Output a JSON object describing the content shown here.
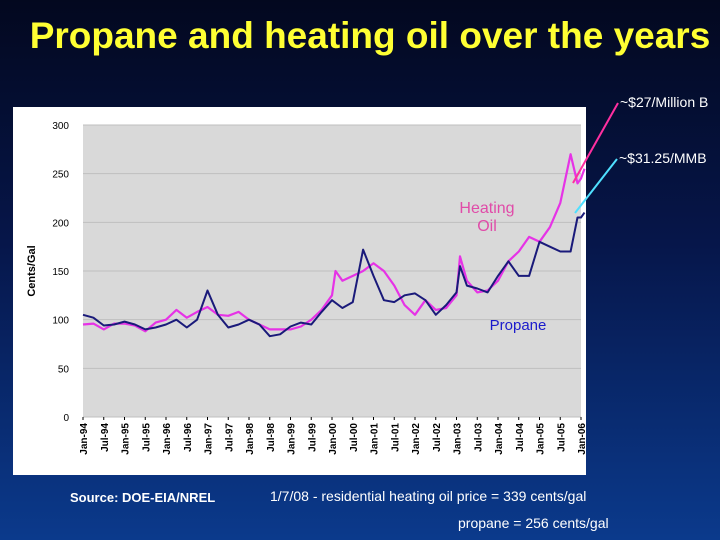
{
  "slide": {
    "title": "Propane and heating oil over the years",
    "callout_top": "~$27/Million B",
    "callout_bottom": "~$31.25/MMB",
    "source": "Source: DOE-EIA/NREL",
    "note_line1": "1/7/08 - residential heating oil price = 339 cents/gal",
    "note_line2": "propane = 256 cents/gal"
  },
  "colors": {
    "heating_oil": "#e633e6",
    "propane": "#1a1a7a",
    "connector_magenta": "#ff2fa0",
    "connector_cyan": "#4fe0ff",
    "gridline": "#bfbfbf",
    "title": "#ffff33"
  },
  "chart_data": {
    "type": "line",
    "title": "",
    "xlabel": "",
    "ylabel": "Cents/Gal",
    "ylim": [
      0,
      300
    ],
    "yticks": [
      0,
      50,
      100,
      150,
      200,
      250,
      300
    ],
    "grid": true,
    "xticks": [
      "Jan-94",
      "Jul-94",
      "Jan-95",
      "Jul-95",
      "Jan-96",
      "Jul-96",
      "Jan-97",
      "Jul-97",
      "Jan-98",
      "Jul-98",
      "Jan-99",
      "Jul-99",
      "Jan-00",
      "Jul-00",
      "Jan-01",
      "Jul-01",
      "Jan-02",
      "Jul-02",
      "Jan-03",
      "Jul-03",
      "Jan-04",
      "Jul-04",
      "Jan-05",
      "Jul-05",
      "Jan-06"
    ],
    "series": [
      {
        "name": "Heating Oil",
        "x": [
          "1994-01",
          "1994-04",
          "1994-07",
          "1994-10",
          "1995-01",
          "1995-04",
          "1995-07",
          "1995-10",
          "1996-01",
          "1996-04",
          "1996-07",
          "1996-10",
          "1997-01",
          "1997-04",
          "1997-07",
          "1997-10",
          "1998-01",
          "1998-04",
          "1998-07",
          "1998-10",
          "1999-01",
          "1999-04",
          "1999-07",
          "1999-10",
          "2000-01",
          "2000-02",
          "2000-04",
          "2000-07",
          "2000-10",
          "2001-01",
          "2001-04",
          "2001-07",
          "2001-10",
          "2002-01",
          "2002-04",
          "2002-07",
          "2002-10",
          "2003-01",
          "2003-02",
          "2003-04",
          "2003-07",
          "2003-10",
          "2004-01",
          "2004-04",
          "2004-07",
          "2004-10",
          "2005-01",
          "2005-04",
          "2005-07",
          "2005-10",
          "2005-12",
          "2006-01",
          "2006-02"
        ],
        "values": [
          95,
          96,
          90,
          96,
          96,
          94,
          88,
          97,
          100,
          110,
          102,
          108,
          113,
          105,
          104,
          108,
          100,
          95,
          90,
          90,
          90,
          93,
          100,
          110,
          125,
          150,
          140,
          145,
          150,
          158,
          150,
          135,
          115,
          105,
          120,
          110,
          112,
          125,
          165,
          140,
          128,
          130,
          140,
          160,
          170,
          185,
          180,
          195,
          220,
          270,
          240,
          245,
          255
        ]
      },
      {
        "name": "Propane",
        "x": [
          "1994-01",
          "1994-04",
          "1994-07",
          "1994-10",
          "1995-01",
          "1995-04",
          "1995-07",
          "1995-10",
          "1996-01",
          "1996-04",
          "1996-07",
          "1996-10",
          "1997-01",
          "1997-04",
          "1997-07",
          "1997-10",
          "1998-01",
          "1998-04",
          "1998-07",
          "1998-10",
          "1999-01",
          "1999-04",
          "1999-07",
          "1999-10",
          "2000-01",
          "2000-04",
          "2000-07",
          "2000-10",
          "2001-01",
          "2001-04",
          "2001-07",
          "2001-10",
          "2002-01",
          "2002-04",
          "2002-07",
          "2002-10",
          "2003-01",
          "2003-02",
          "2003-04",
          "2003-07",
          "2003-10",
          "2004-01",
          "2004-04",
          "2004-07",
          "2004-10",
          "2005-01",
          "2005-04",
          "2005-07",
          "2005-10",
          "2005-12",
          "2006-01",
          "2006-02"
        ],
        "values": [
          105,
          102,
          94,
          95,
          98,
          95,
          90,
          92,
          95,
          100,
          92,
          100,
          130,
          105,
          92,
          95,
          100,
          95,
          83,
          85,
          93,
          97,
          95,
          108,
          120,
          112,
          118,
          172,
          145,
          120,
          118,
          125,
          127,
          120,
          105,
          115,
          128,
          155,
          135,
          132,
          128,
          145,
          160,
          145,
          145,
          180,
          175,
          170,
          170,
          205,
          205,
          210
        ]
      }
    ],
    "annotations": [
      {
        "text": "Heating Oil",
        "series": "Heating Oil"
      },
      {
        "text": "Propane",
        "series": "Propane"
      }
    ]
  }
}
